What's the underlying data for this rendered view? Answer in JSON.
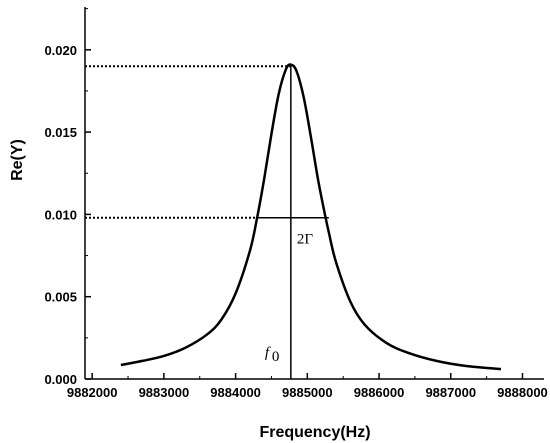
{
  "chart_data": {
    "type": "line",
    "xlabel": "Frequency(Hz)",
    "ylabel": "Re(Y)",
    "xlim": [
      9881900,
      9888300
    ],
    "ylim": [
      0,
      0.0226
    ],
    "x_ticks": [
      9882000,
      9883000,
      9884000,
      9885000,
      9886000,
      9887000,
      9888000
    ],
    "x_tick_labels": [
      "9882000",
      "9883000",
      "9884000",
      "9885000",
      "9886000",
      "9887000",
      "9888000"
    ],
    "y_ticks": [
      0,
      0.005,
      0.01,
      0.015,
      0.02
    ],
    "y_tick_labels": [
      "0.000",
      "0.005",
      "0.010",
      "0.015",
      "0.020"
    ],
    "series": [
      {
        "x": [
          9882400,
          9882700,
          9883000,
          9883300,
          9883600,
          9883800,
          9884000,
          9884200,
          9884300,
          9884400,
          9884500,
          9884600,
          9884700,
          9884770,
          9884850,
          9884950,
          9885050,
          9885150,
          9885250,
          9885300,
          9885400,
          9885600,
          9885800,
          9886100,
          9886400,
          9886800,
          9887200,
          9887700
        ],
        "y": [
          0.00085,
          0.0011,
          0.0014,
          0.0019,
          0.0027,
          0.0036,
          0.0052,
          0.0078,
          0.0098,
          0.0122,
          0.0149,
          0.0173,
          0.0188,
          0.0191,
          0.0187,
          0.0171,
          0.0147,
          0.0121,
          0.0099,
          0.0089,
          0.0071,
          0.0047,
          0.0033,
          0.0022,
          0.0016,
          0.0011,
          0.0008,
          0.0006
        ]
      }
    ],
    "annotations": {
      "peak_y": 0.019,
      "half_y": 0.0098,
      "f0_x": 9884770,
      "half_x_left": 9884290,
      "half_x_right": 9885300,
      "width_label": "2Γ",
      "f0_label": "f",
      "f0_subscript": "0"
    }
  }
}
